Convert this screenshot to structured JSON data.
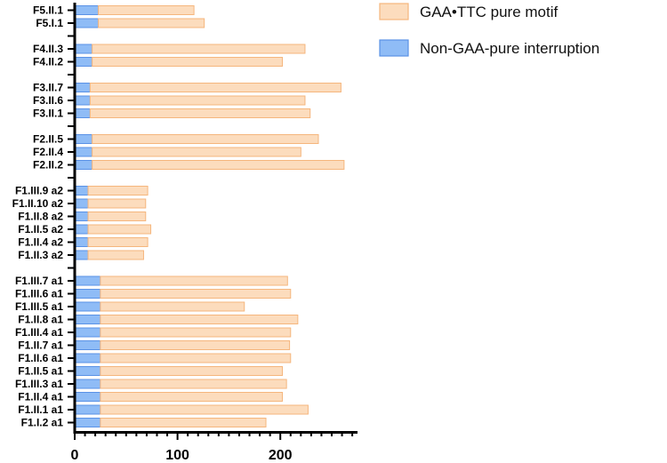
{
  "chart_data": {
    "type": "bar",
    "orientation": "horizontal",
    "stacked": true,
    "categories": [
      "F5.II.1",
      "F5.I.1",
      "",
      "F4.II.3",
      "F4.II.2",
      "",
      "F3.II.7",
      "F3.II.6",
      "F3.II.1",
      "",
      "F2.II.5",
      "F2.II.4",
      "F2.II.2",
      "",
      "F1.III.9 a2",
      "F1.II.10 a2",
      "F1.II.8 a2",
      "F1.II.5 a2",
      "F1.II.4 a2",
      "F1.II.3 a2",
      "",
      "F1.III.7 a1",
      "F1.III.6 a1",
      "F1.III.5 a1",
      "F1.II.8 a1",
      "F1.III.4 a1",
      "F1.II.7 a1",
      "F1.II.6 a1",
      "F1.II.5 a1",
      "F1.III.3 a1",
      "F1.II.4 a1",
      "F1.II.1 a1",
      "F1.I.2 a1"
    ],
    "series": [
      {
        "name": "Non-GAA-pure interruption",
        "color": "#8fbcf6",
        "edge": "#5a92e6",
        "values": [
          23,
          23,
          null,
          17,
          17,
          null,
          15,
          15,
          15,
          null,
          17,
          17,
          17,
          null,
          13,
          13,
          13,
          13,
          13,
          13,
          null,
          25,
          25,
          25,
          25,
          25,
          25,
          25,
          25,
          25,
          25,
          25,
          25
        ]
      },
      {
        "name": "GAA•TTC pure motif",
        "color": "#fcdcbd",
        "edge": "#f5b67d",
        "values": [
          93,
          103,
          null,
          207,
          185,
          null,
          244,
          209,
          214,
          null,
          220,
          203,
          245,
          null,
          58,
          56,
          56,
          61,
          58,
          54,
          null,
          182,
          185,
          140,
          192,
          185,
          184,
          185,
          177,
          181,
          177,
          202,
          161
        ]
      }
    ],
    "xlim": [
      0,
      270
    ],
    "xticks": [
      "0",
      "100",
      "200"
    ],
    "legend": {
      "position": "top-right",
      "order": [
        "GAA•TTC pure motif",
        "Non-GAA-pure interruption"
      ]
    },
    "grid": false
  }
}
